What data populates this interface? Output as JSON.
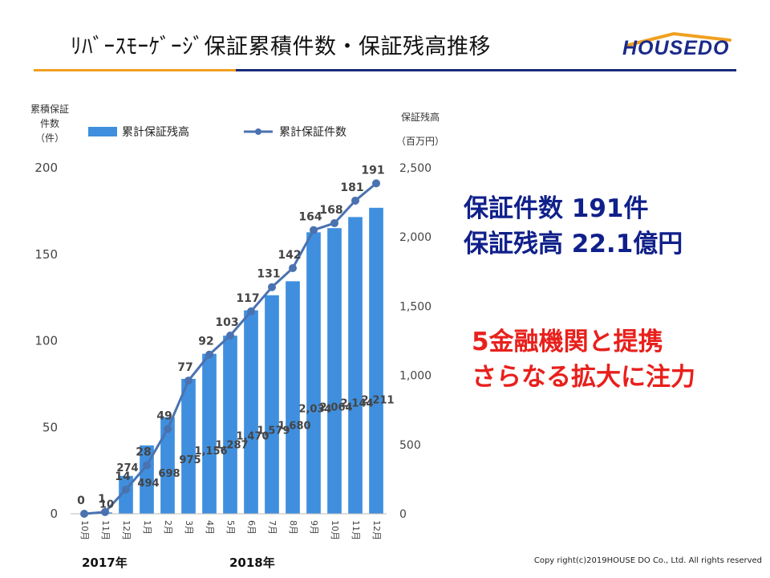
{
  "title": "ﾘﾊﾞｰｽﾓｰｹﾞｰｼﾞ保証累積件数・保証残高推移",
  "logo_text": "HOUSEDO",
  "callouts": {
    "line1": "保証件数 191件",
    "line2": "保証残高 22.1億円",
    "line3": "5金融機関と提携",
    "line4": "さらなる拡大に注力"
  },
  "years": {
    "y2017": "2017年",
    "y2018": "2018年"
  },
  "copyright": "Copy right(c)2019HOUSE DO Co., Ltd. All rights reserved",
  "colors": {
    "bar": "#3f8fde",
    "line": "#4a72b0",
    "title_navy": "#1b2a78",
    "title_orange": "#f0a020",
    "callout_blue": "#10208a",
    "callout_red": "#e8201c"
  },
  "chart_data": {
    "type": "bar+line",
    "categories": [
      "10月",
      "11月",
      "12月",
      "1月",
      "2月",
      "3月",
      "4月",
      "5月",
      "6月",
      "7月",
      "8月",
      "9月",
      "10月",
      "11月",
      "12月"
    ],
    "left_axis_label_lines": [
      "累積保証",
      "件数",
      "（件）"
    ],
    "right_axis_label_lines": [
      "保証残高",
      "（百万円）"
    ],
    "left_ticks": [
      "200",
      "150",
      "100",
      "50",
      "0"
    ],
    "right_ticks": [
      "2,500",
      "2,000",
      "1,500",
      "1,000",
      "500",
      "0"
    ],
    "ylim_left": [
      0,
      200
    ],
    "ylim_right": [
      0,
      2500
    ],
    "grid": false,
    "legend_position": "top",
    "series": [
      {
        "name": "累計保証残高",
        "kind": "bar",
        "axis": "right",
        "values": [
          0,
          10,
          274,
          494,
          698,
          975,
          1156,
          1287,
          1470,
          1579,
          1680,
          2034,
          2064,
          2144,
          2211
        ],
        "labels": [
          "",
          "10",
          "274",
          "494",
          "698",
          "975",
          "1,156",
          "1,287",
          "1,470",
          "1,579",
          "1,680",
          "2,034",
          "2,064",
          "2,144",
          "2,211"
        ]
      },
      {
        "name": "累計保証件数",
        "kind": "line",
        "axis": "left",
        "values": [
          0,
          1,
          14,
          28,
          49,
          77,
          92,
          103,
          117,
          131,
          142,
          164,
          168,
          181,
          191
        ],
        "labels": [
          "0",
          "1",
          "14",
          "28",
          "49",
          "77",
          "92",
          "103",
          "117",
          "131",
          "142",
          "164",
          "168",
          "181",
          "191"
        ]
      }
    ]
  }
}
